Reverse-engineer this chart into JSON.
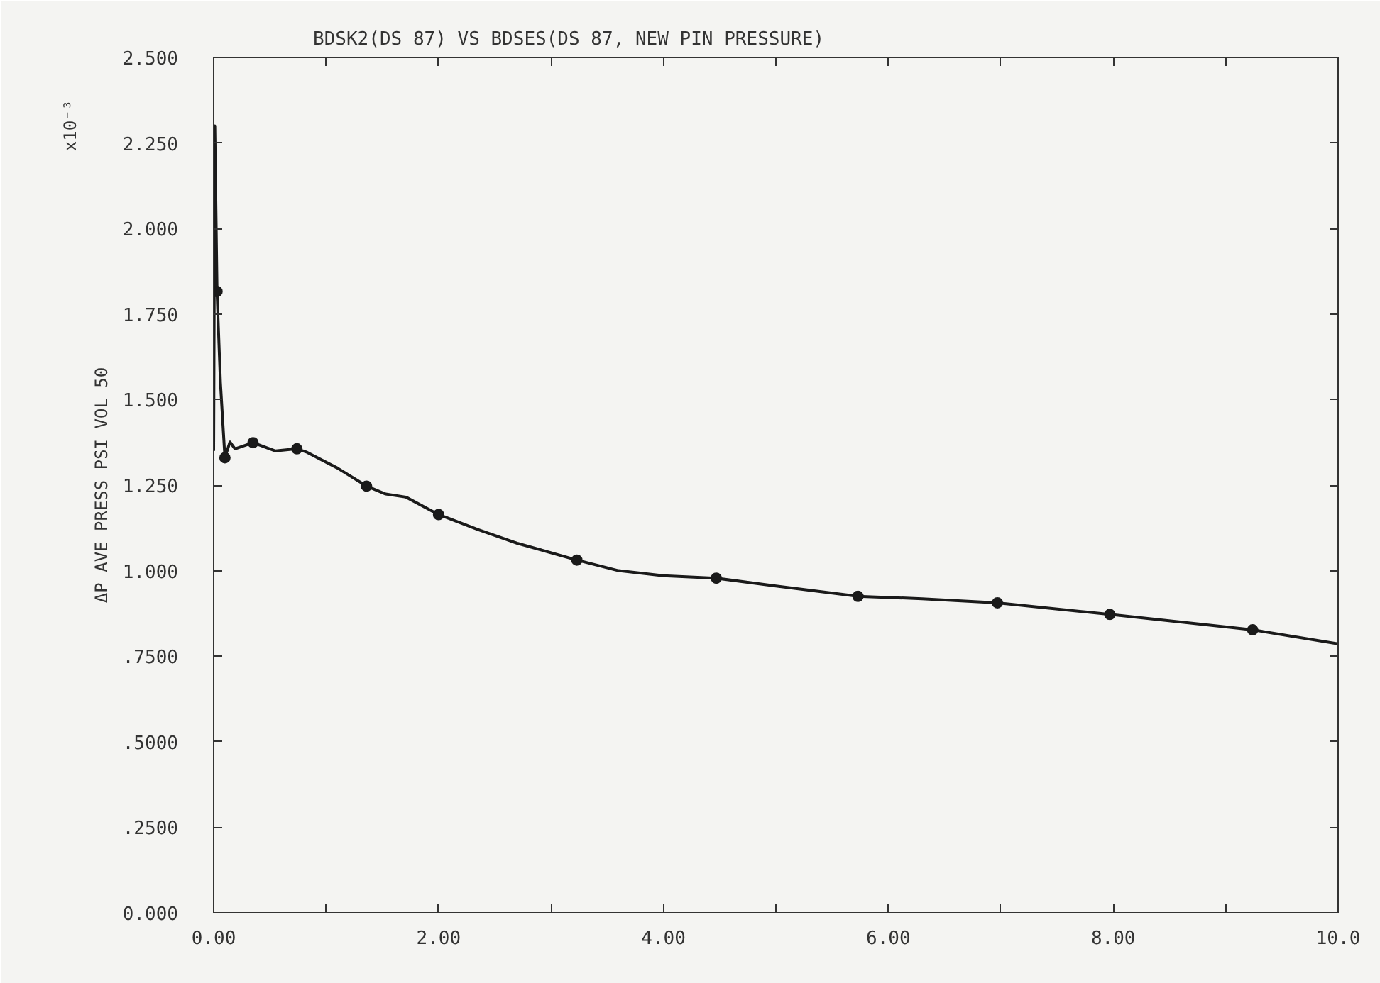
{
  "chart_data": {
    "type": "line",
    "title": "BDSK2(DS 87) VS BDSES(DS 87, NEW PIN PRESSURE)",
    "ylabel": "ΔP AVE PRESS PSI VOL 50",
    "annotations": [
      "x10⁻³"
    ],
    "series": [
      {
        "color": "#1a1a1a",
        "marker": "none",
        "x": [
          0.0,
          0.01,
          0.03,
          0.06,
          0.1,
          0.145,
          0.19,
          0.35,
          0.55,
          0.74,
          0.83,
          1.1,
          1.36,
          1.53,
          1.71,
          2.0,
          2.35,
          2.7,
          3.23,
          3.6,
          4.0,
          4.47,
          5.0,
          5.73,
          6.3,
          6.97,
          7.97,
          9.24,
          10.0
        ],
        "values": [
          1.35,
          2.3,
          1.816,
          1.55,
          1.33,
          1.376,
          1.356,
          1.374,
          1.35,
          1.356,
          1.346,
          1.3,
          1.247,
          1.224,
          1.215,
          1.164,
          1.12,
          1.08,
          1.031,
          1.0,
          0.985,
          0.978,
          0.955,
          0.925,
          0.918,
          0.906,
          0.872,
          0.827,
          0.786
        ]
      },
      {
        "type": "scatter",
        "color": "#1a1a1a",
        "marker": "circle",
        "x": [
          0.03,
          0.1,
          0.35,
          0.74,
          1.36,
          2.0,
          3.23,
          4.47,
          5.73,
          6.97,
          7.97,
          9.24
        ],
        "values": [
          1.816,
          1.33,
          1.374,
          1.356,
          1.247,
          1.164,
          1.031,
          0.978,
          0.925,
          0.906,
          0.872,
          0.827
        ]
      }
    ],
    "xlim": [
      0,
      10
    ],
    "ylim": [
      0,
      2.5
    ],
    "xticks": [
      {
        "value": 0,
        "label": "0.00"
      },
      {
        "value": 1,
        "label": null
      },
      {
        "value": 2,
        "label": "2.00"
      },
      {
        "value": 3,
        "label": null
      },
      {
        "value": 4,
        "label": "4.00"
      },
      {
        "value": 5,
        "label": null
      },
      {
        "value": 6,
        "label": "6.00"
      },
      {
        "value": 7,
        "label": null
      },
      {
        "value": 8,
        "label": "8.00"
      },
      {
        "value": 9,
        "label": null
      },
      {
        "value": 10,
        "label": "10.0"
      }
    ],
    "yticks": [
      {
        "value": 0,
        "label": "0.000"
      },
      {
        "value": 0.25,
        "label": ".2500"
      },
      {
        "value": 0.5,
        "label": ".5000"
      },
      {
        "value": 0.75,
        "label": ".7500"
      },
      {
        "value": 1,
        "label": "1.000"
      },
      {
        "value": 1.25,
        "label": "1.250"
      },
      {
        "value": 1.5,
        "label": "1.500"
      },
      {
        "value": 1.75,
        "label": "1.750"
      },
      {
        "value": 2,
        "label": "2.000"
      },
      {
        "value": 2.25,
        "label": "2.250"
      },
      {
        "value": 2.5,
        "label": "2.500"
      }
    ],
    "grid": false
  }
}
